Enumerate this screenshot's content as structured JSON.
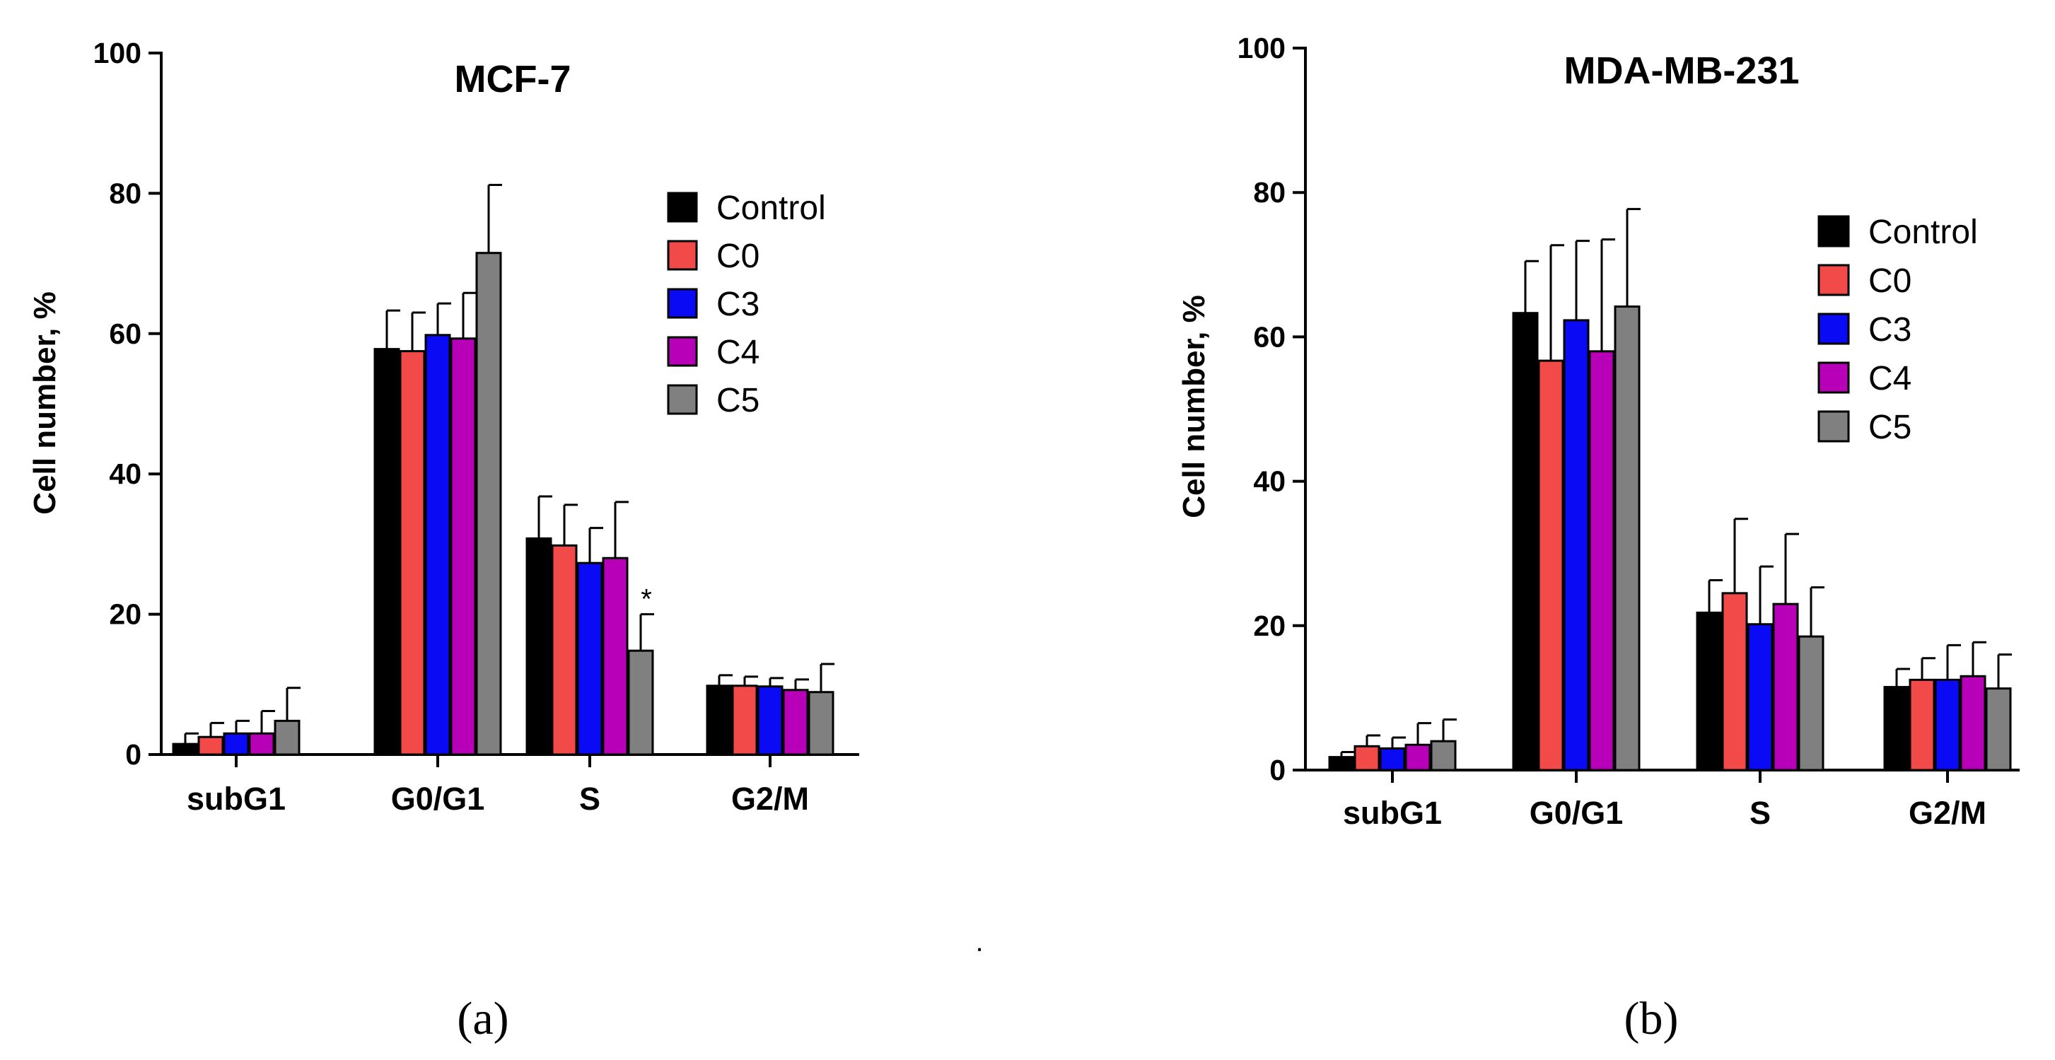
{
  "chart_data": [
    {
      "type": "bar",
      "title": "MCF-7",
      "panel_label": "(a)",
      "ylabel": "Cell number, %",
      "ylim": [
        0,
        100
      ],
      "yticks": [
        0,
        20,
        40,
        60,
        80,
        100
      ],
      "categories": [
        "subG1",
        "G0/G1",
        "S",
        "G2/M"
      ],
      "legend_position": "top-right",
      "series": [
        {
          "name": "Control",
          "color": "#000000",
          "values": [
            1.5,
            57.8,
            30.8,
            9.8
          ],
          "errors": [
            1.5,
            5.5,
            6.0,
            1.5
          ]
        },
        {
          "name": "C0",
          "color": "#f24a48",
          "values": [
            2.5,
            57.5,
            29.8,
            9.8
          ],
          "errors": [
            2.0,
            5.5,
            5.8,
            1.3
          ]
        },
        {
          "name": "C3",
          "color": "#0a0af5",
          "values": [
            3.0,
            59.8,
            27.3,
            9.7
          ],
          "errors": [
            1.8,
            4.5,
            5.0,
            1.2
          ]
        },
        {
          "name": "C4",
          "color": "#b800b8",
          "values": [
            3.0,
            59.3,
            28.0,
            9.2
          ],
          "errors": [
            3.2,
            6.5,
            8.0,
            1.5
          ]
        },
        {
          "name": "C5",
          "color": "#808080",
          "values": [
            4.8,
            71.5,
            14.8,
            8.9
          ],
          "errors": [
            4.7,
            9.7,
            5.2,
            4.0
          ]
        }
      ],
      "annotations": [
        {
          "category": "S",
          "series": "C5",
          "text": "*"
        }
      ]
    },
    {
      "type": "bar",
      "title": "MDA-MB-231",
      "panel_label": "(b)",
      "ylabel": "Cell number, %",
      "ylim": [
        0,
        100
      ],
      "yticks": [
        0,
        20,
        40,
        60,
        80,
        100
      ],
      "categories": [
        "subG1",
        "G0/G1",
        "S",
        "G2/M"
      ],
      "legend_position": "top-right",
      "series": [
        {
          "name": "Control",
          "color": "#000000",
          "values": [
            1.8,
            63.3,
            21.8,
            11.5
          ],
          "errors": [
            0.7,
            7.2,
            4.5,
            2.5
          ]
        },
        {
          "name": "C0",
          "color": "#f24a48",
          "values": [
            3.3,
            56.7,
            24.5,
            12.5
          ],
          "errors": [
            1.5,
            16.0,
            10.3,
            3.0
          ]
        },
        {
          "name": "C3",
          "color": "#0a0af5",
          "values": [
            3.0,
            62.3,
            20.2,
            12.5
          ],
          "errors": [
            1.5,
            11.0,
            8.0,
            4.8
          ]
        },
        {
          "name": "C4",
          "color": "#b800b8",
          "values": [
            3.5,
            58.0,
            23.0,
            13.0
          ],
          "errors": [
            3.0,
            15.5,
            9.7,
            4.7
          ]
        },
        {
          "name": "C5",
          "color": "#808080",
          "values": [
            4.0,
            64.2,
            18.5,
            11.3
          ],
          "errors": [
            3.0,
            13.5,
            6.8,
            4.7
          ]
        }
      ]
    }
  ],
  "separator": "."
}
